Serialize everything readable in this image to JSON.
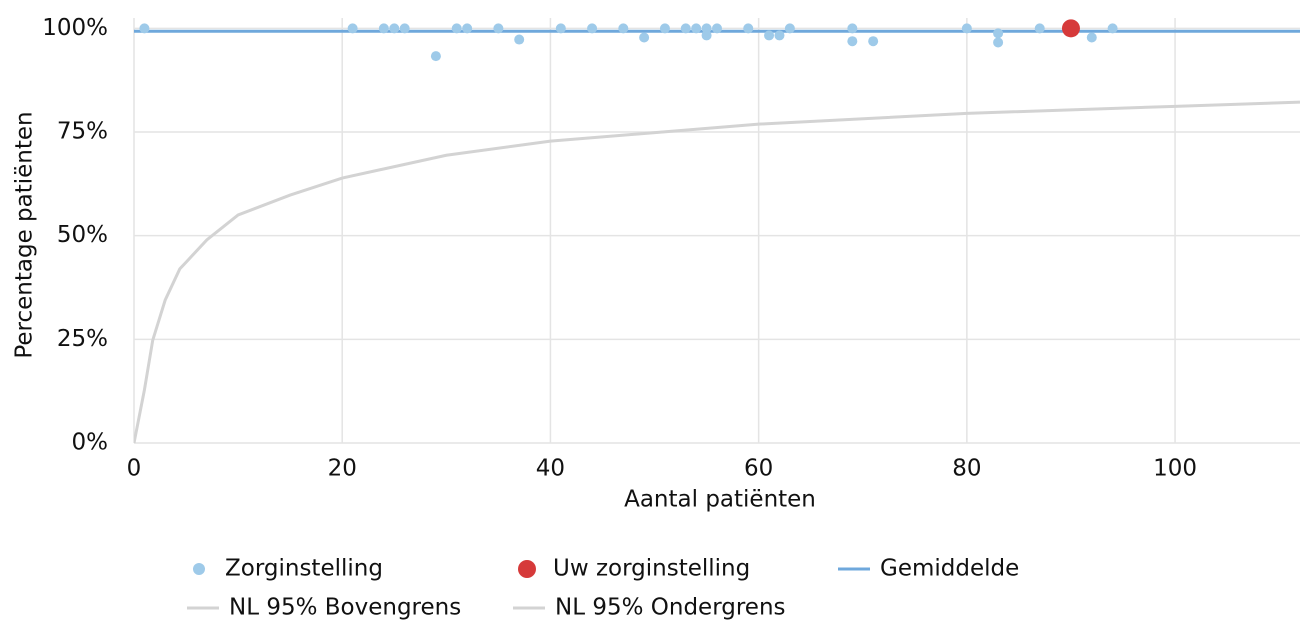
{
  "chart_data": {
    "type": "scatter",
    "xlabel": "Aantal patiënten",
    "ylabel": "Percentage patiënten",
    "xlim": [
      0,
      112
    ],
    "ylim": [
      0,
      102.5
    ],
    "xticks": [
      0,
      20,
      40,
      60,
      80,
      100
    ],
    "yticks": [
      {
        "value": 0,
        "label": "0%"
      },
      {
        "value": 25,
        "label": "25%"
      },
      {
        "value": 50,
        "label": "50%"
      },
      {
        "value": 75,
        "label": "75%"
      },
      {
        "value": 100,
        "label": "100%"
      }
    ],
    "grid": true,
    "legend": "bottom",
    "series": [
      {
        "name": "Zorginstelling",
        "color": "#9ecae9",
        "style": "marker",
        "x": [
          1,
          21,
          24,
          25,
          26,
          29,
          31,
          32,
          35,
          37,
          41,
          44,
          47,
          49,
          51,
          53,
          54,
          55,
          55,
          56,
          59,
          61,
          62,
          63,
          69,
          69,
          71,
          80,
          83,
          83,
          87,
          92,
          94
        ],
        "values": [
          100,
          100,
          100,
          100,
          100,
          93.3,
          100,
          100,
          100,
          97.3,
          100,
          100,
          100,
          97.8,
          100,
          100,
          100,
          100,
          98.3,
          100,
          100,
          98.3,
          98.3,
          100,
          100,
          96.9,
          96.9,
          100,
          98.8,
          96.6,
          100,
          97.8,
          100
        ]
      },
      {
        "name": "Uw zorginstelling",
        "color": "#d63a3a",
        "style": "marker",
        "x": [
          90
        ],
        "values": [
          100
        ]
      },
      {
        "name": "Gemiddelde",
        "color": "#6fa8dc",
        "style": "line",
        "x": [
          0,
          112
        ],
        "values": [
          99.3,
          99.3
        ]
      },
      {
        "name": "NL 95% Bovengrens",
        "color": "#d3d3d3",
        "style": "line",
        "x": [],
        "values": []
      },
      {
        "name": "NL 95% Ondergrens",
        "color": "#d3d3d3",
        "style": "line",
        "x": [
          0,
          1,
          1.8,
          3,
          4.4,
          5,
          7,
          10,
          15,
          20,
          30,
          40,
          60,
          80,
          100,
          112
        ],
        "values": [
          0,
          12.8,
          24.8,
          34.5,
          42,
          43.6,
          49,
          55,
          59.8,
          63.9,
          69.4,
          72.8,
          76.9,
          79.5,
          81.2,
          82.2
        ]
      }
    ]
  }
}
